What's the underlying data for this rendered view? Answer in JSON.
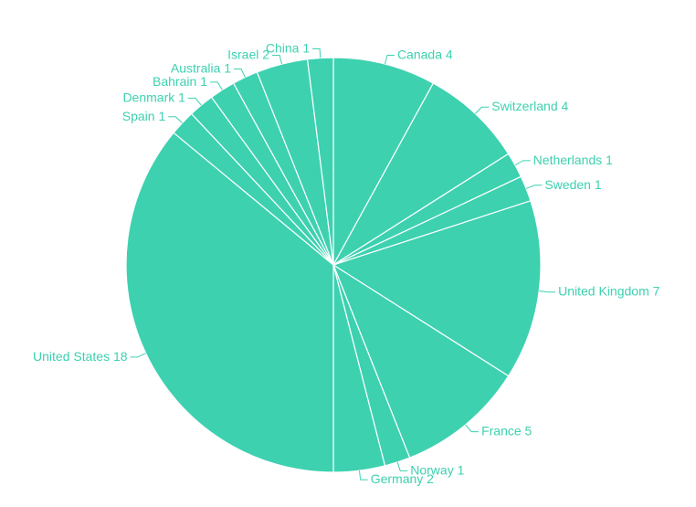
{
  "chart_data": {
    "type": "pie",
    "categories": [
      "Canada",
      "Switzerland",
      "Netherlands",
      "Sweden",
      "United Kingdom",
      "France",
      "Norway",
      "Germany",
      "United States",
      "Spain",
      "Denmark",
      "Bahrain",
      "Australia",
      "Israel",
      "China"
    ],
    "values": [
      4,
      4,
      1,
      1,
      7,
      5,
      1,
      2,
      18,
      1,
      1,
      1,
      1,
      2,
      1
    ],
    "color": "#3dd1b0"
  }
}
